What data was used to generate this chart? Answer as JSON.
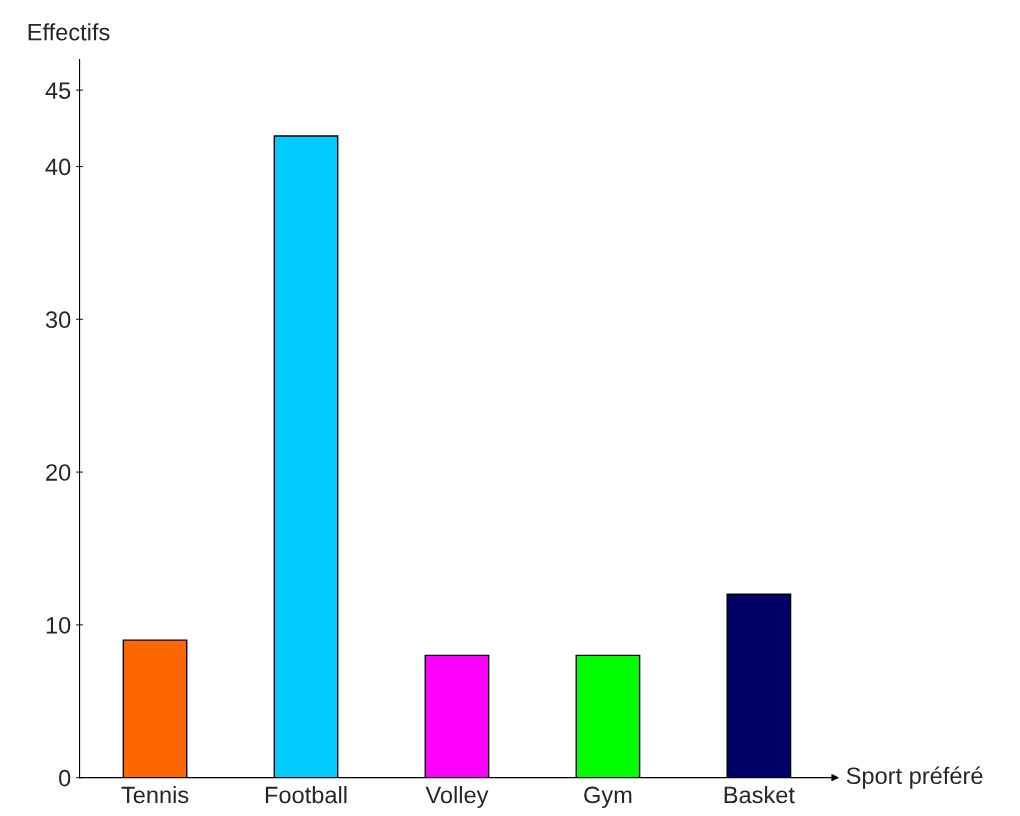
{
  "chart_data": {
    "type": "bar",
    "categories": [
      "Tennis",
      "Football",
      "Volley",
      "Gym",
      "Basket"
    ],
    "values": [
      9,
      42,
      8,
      8,
      12
    ],
    "colors": [
      "#ff6600",
      "#00ccff",
      "#ff00ff",
      "#00ff00",
      "#000066"
    ],
    "xlabel": "Sport préféré",
    "ylabel": "Effectifs",
    "ylim": [
      0,
      47
    ],
    "yticks": [
      0,
      10,
      20,
      30,
      40,
      45
    ],
    "grid": false,
    "legend": false
  }
}
